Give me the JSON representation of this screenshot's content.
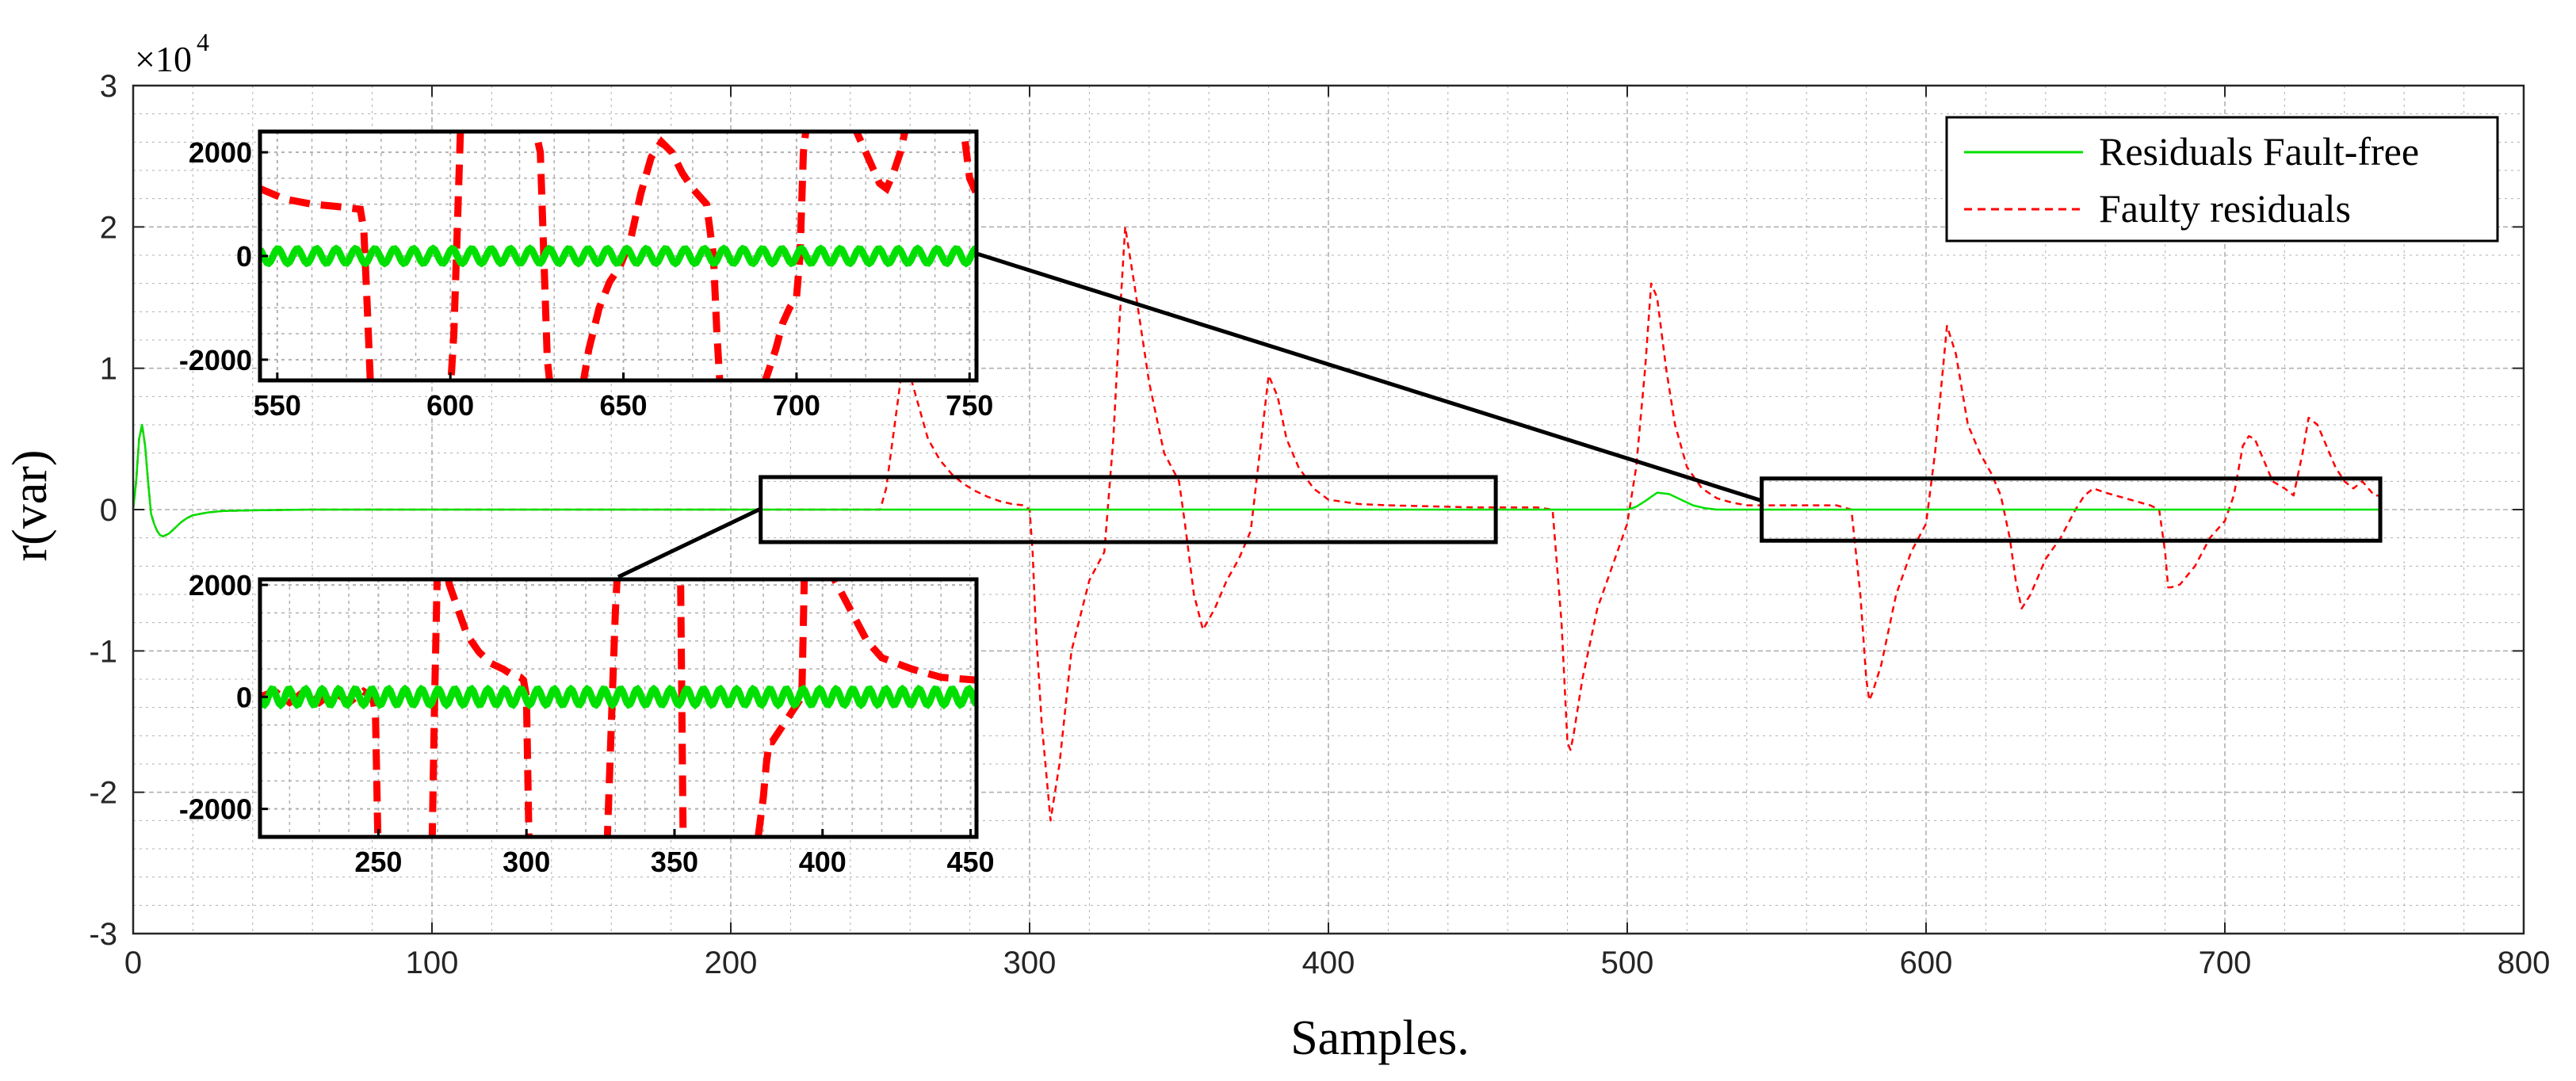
{
  "colors": {
    "fault_free": "#00e000",
    "faulty": "#ff0000",
    "grid": "#b0b0b0",
    "axis": "#262626",
    "box": "#000000"
  },
  "chart_data": {
    "type": "line",
    "title": "",
    "xlabel": "Samples.",
    "ylabel": "r(var)",
    "y_multiplier": "×10^4",
    "y_exponent_base": "×10",
    "y_exponent_power": "4",
    "xlim": [
      0,
      800
    ],
    "ylim": [
      -30000,
      30000
    ],
    "xticks": [
      0,
      100,
      200,
      300,
      400,
      500,
      600,
      700,
      800
    ],
    "yticks": [
      -30000,
      -20000,
      -10000,
      0,
      10000,
      20000,
      30000
    ],
    "xtick_labels": [
      "0",
      "100",
      "200",
      "300",
      "400",
      "500",
      "600",
      "700",
      "800"
    ],
    "ytick_labels": [
      "-3",
      "-2",
      "-1",
      "0",
      "1",
      "2",
      "3"
    ],
    "grid": true,
    "legend_position": "top-right",
    "series": [
      {
        "name": "Residuals Fault-free",
        "style": "solid",
        "x": [
          0,
          1,
          2,
          3,
          4,
          5,
          6,
          7,
          8,
          9,
          10,
          12,
          14,
          16,
          18,
          20,
          25,
          30,
          40,
          60,
          100,
          200,
          300,
          400,
          500,
          503,
          506,
          510,
          514,
          518,
          522,
          526,
          530,
          600,
          700,
          752
        ],
        "y": [
          0,
          2000,
          5000,
          6000,
          4500,
          2000,
          -300,
          -1000,
          -1500,
          -1800,
          -1900,
          -1700,
          -1300,
          -900,
          -600,
          -400,
          -200,
          -100,
          -50,
          0,
          0,
          0,
          0,
          0,
          0,
          200,
          600,
          1200,
          1100,
          700,
          300,
          100,
          0,
          0,
          0,
          0
        ]
      },
      {
        "name": "Faulty residuals",
        "style": "dashed",
        "x": [
          0,
          1,
          2,
          3,
          4,
          5,
          6,
          7,
          8,
          9,
          10,
          12,
          14,
          16,
          18,
          20,
          25,
          30,
          40,
          60,
          100,
          200,
          240,
          250,
          252,
          258,
          262,
          266,
          270,
          274,
          278,
          282,
          286,
          290,
          294,
          298,
          300,
          301,
          302,
          304,
          307,
          310,
          314,
          320,
          325,
          328,
          330,
          332,
          335,
          340,
          345,
          350,
          352,
          355,
          358,
          362,
          366,
          370,
          374,
          377,
          380,
          383,
          386,
          390,
          395,
          400,
          410,
          420,
          430,
          440,
          450,
          460,
          470,
          475,
          478,
          480,
          481,
          482,
          485,
          490,
          495,
          500,
          503,
          506,
          508,
          510,
          513,
          516,
          520,
          525,
          530,
          535,
          540,
          550,
          560,
          570,
          575,
          578,
          580,
          581,
          582,
          585,
          590,
          595,
          600,
          603,
          607,
          610,
          614,
          618,
          622,
          625,
          628,
          630,
          632,
          635,
          640,
          645,
          650,
          653,
          656,
          660,
          665,
          670,
          675,
          678,
          680,
          681,
          682,
          685,
          690,
          695,
          700,
          703,
          706,
          708,
          710,
          713,
          716,
          720,
          723,
          726,
          728,
          731,
          734,
          737,
          740,
          743,
          746,
          750,
          752
        ],
        "y": [
          0,
          2000,
          5000,
          6000,
          4500,
          2000,
          -300,
          -1000,
          -1500,
          -1800,
          -1900,
          -1700,
          -1300,
          -900,
          -600,
          -400,
          -200,
          -100,
          -50,
          0,
          0,
          0,
          0,
          0,
          1500,
          11000,
          8000,
          5000,
          3500,
          2500,
          1800,
          1300,
          900,
          600,
          400,
          300,
          0,
          -3000,
          -8000,
          -15000,
          -22000,
          -18000,
          -10000,
          -5000,
          -3000,
          5000,
          13000,
          20000,
          16000,
          9000,
          4000,
          2000,
          -1000,
          -6000,
          -8500,
          -7000,
          -5000,
          -3500,
          -1500,
          4000,
          9500,
          8000,
          5000,
          3000,
          1500,
          700,
          400,
          300,
          250,
          200,
          150,
          150,
          150,
          0,
          -8000,
          -16500,
          -17000,
          -16000,
          -12000,
          -7000,
          -4000,
          -1000,
          3000,
          10000,
          16000,
          15000,
          10000,
          6000,
          3000,
          1500,
          800,
          500,
          300,
          300,
          300,
          300,
          0,
          -6000,
          -12000,
          -13500,
          -13000,
          -11000,
          -6000,
          -3000,
          -1000,
          4000,
          13000,
          11000,
          6000,
          4000,
          2500,
          1000,
          -2000,
          -5000,
          -7000,
          -6000,
          -3500,
          -2000,
          0,
          1000,
          1500,
          1200,
          900,
          600,
          300,
          0,
          -3000,
          -5500,
          -5500,
          -5300,
          -4000,
          -2000,
          -800,
          1000,
          4500,
          5200,
          5000,
          3500,
          2000,
          1500,
          1000,
          4000,
          6500,
          6000,
          4500,
          3000,
          2000,
          1500,
          2000,
          1000,
          1000
        ]
      }
    ],
    "insets": [
      {
        "name": "zoom-top",
        "xlim": [
          545,
          752
        ],
        "ylim": [
          -2400,
          2400
        ],
        "xticks": [
          550,
          600,
          650,
          700,
          750
        ],
        "yticks": [
          -2000,
          0,
          2000
        ],
        "xtick_labels": [
          "550",
          "600",
          "650",
          "700",
          "750"
        ],
        "ytick_labels": [
          "-2000",
          "0",
          "2000"
        ],
        "region_x": [
          545,
          752
        ],
        "region_y": [
          -2200,
          2200
        ],
        "faulty_x": [
          545,
          552,
          560,
          568,
          574,
          575,
          576,
          577,
          578,
          600,
          601,
          602,
          603,
          604,
          605,
          610,
          615,
          620,
          624,
          626,
          627,
          628,
          629,
          630,
          631,
          632,
          638,
          640,
          643,
          646,
          649,
          652,
          655,
          658,
          661,
          664,
          667,
          670,
          674,
          676,
          677,
          678,
          690,
          692,
          694,
          696,
          698,
          700,
          701,
          702,
          703,
          704,
          708,
          716,
          718,
          720,
          722,
          724,
          726,
          728,
          730,
          732,
          733,
          734,
          735,
          736,
          737,
          748,
          750,
          752
        ],
        "faulty_y": [
          1300,
          1100,
          1000,
          950,
          900,
          500,
          -1000,
          -2600,
          -2600,
          -2600,
          -1500,
          500,
          2600,
          2600,
          2600,
          2600,
          2600,
          2600,
          2600,
          2000,
          0,
          -2000,
          -2600,
          -2600,
          -2600,
          -2600,
          -2600,
          -1800,
          -1000,
          -500,
          -200,
          300,
          1200,
          1900,
          2200,
          2000,
          1600,
          1300,
          1000,
          0,
          -1500,
          -2600,
          -2600,
          -2200,
          -1800,
          -1300,
          -1000,
          -800,
          0,
          2000,
          2600,
          2600,
          2600,
          2600,
          2300,
          2000,
          1700,
          1400,
          1300,
          1600,
          2000,
          2600,
          2600,
          2600,
          2600,
          2600,
          2600,
          2600,
          1500,
          1200
        ]
      },
      {
        "name": "zoom-bottom",
        "xlim": [
          210,
          452
        ],
        "ylim": [
          -2500,
          2100
        ],
        "xticks": [
          250,
          300,
          350,
          400,
          450
        ],
        "yticks": [
          -2000,
          0,
          2000
        ],
        "xtick_labels": [
          "250",
          "300",
          "350",
          "400",
          "450"
        ],
        "ytick_labels": [
          "-2000",
          "0",
          "2000"
        ],
        "region_x": [
          210,
          456
        ],
        "region_y": [
          -2300,
          2300
        ],
        "faulty_x": [
          210,
          215,
          220,
          225,
          230,
          235,
          240,
          245,
          248,
          249,
          250,
          251,
          252,
          253,
          260,
          265,
          268,
          269,
          270,
          271,
          272,
          274,
          276,
          278,
          280,
          284,
          288,
          292,
          295,
          298,
          299,
          300,
          301,
          302,
          303,
          304,
          305,
          325,
          326,
          327,
          328,
          329,
          330,
          331,
          332,
          340,
          345,
          348,
          349,
          350,
          351,
          352,
          353,
          354,
          360,
          365,
          367,
          368,
          370,
          372,
          374,
          376,
          377,
          378,
          379,
          380,
          381,
          382,
          383,
          393,
          394,
          395,
          396,
          397,
          398,
          400,
          405,
          410,
          415,
          420,
          425,
          430,
          440,
          452
        ],
        "faulty_y": [
          0,
          100,
          -100,
          100,
          -100,
          100,
          -100,
          100,
          0,
          -300,
          -3000,
          -3000,
          -3000,
          -3000,
          -3000,
          -3000,
          -3000,
          0,
          2500,
          2500,
          2500,
          2000,
          1700,
          1400,
          1100,
          800,
          600,
          500,
          400,
          350,
          300,
          0,
          -3000,
          -3000,
          -3000,
          -3000,
          -3000,
          -3000,
          -3000,
          -3000,
          -1500,
          0,
          1500,
          2500,
          2500,
          2500,
          2500,
          2500,
          2500,
          2500,
          2500,
          2500,
          -3000,
          -3000,
          -3000,
          -3000,
          -3000,
          -3000,
          -3000,
          -3000,
          -3000,
          -3000,
          -3000,
          -2600,
          -2200,
          -1800,
          -1200,
          -800,
          -800,
          0,
          2500,
          2500,
          2500,
          2500,
          2500,
          2500,
          2000,
          1500,
          1000,
          700,
          600,
          500,
          350,
          300,
          300
        ]
      }
    ]
  }
}
